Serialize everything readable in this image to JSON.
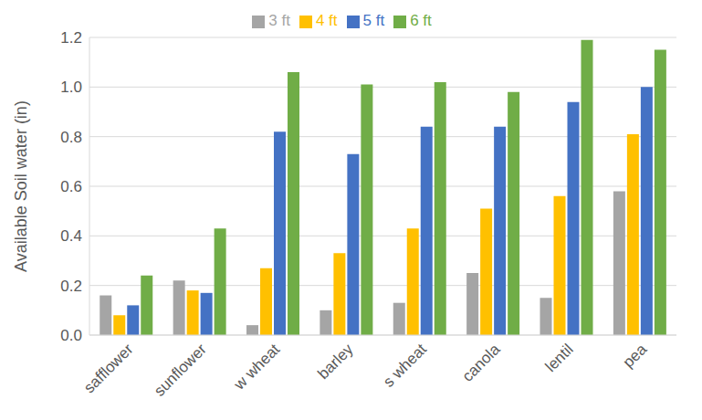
{
  "chart_data": {
    "type": "bar",
    "y_label": "Available Soil water (in)",
    "categories": [
      "safflower",
      "sunflower",
      "w wheat",
      "barley",
      "s wheat",
      "canola",
      "lentil",
      "pea"
    ],
    "series": [
      {
        "name": "3 ft",
        "color": "#a5a5a5",
        "values": [
          0.16,
          0.22,
          0.04,
          0.1,
          0.13,
          0.25,
          0.15,
          0.58
        ]
      },
      {
        "name": "4 ft",
        "color": "#ffc000",
        "values": [
          0.08,
          0.18,
          0.27,
          0.33,
          0.43,
          0.51,
          0.56,
          0.81
        ]
      },
      {
        "name": "5 ft",
        "color": "#4472c4",
        "values": [
          0.12,
          0.17,
          0.82,
          0.73,
          0.84,
          0.84,
          0.94,
          1.0
        ]
      },
      {
        "name": "6 ft",
        "color": "#70ad47",
        "values": [
          0.24,
          0.43,
          1.06,
          1.01,
          1.02,
          0.98,
          1.19,
          1.15
        ]
      }
    ],
    "ylim": [
      0,
      1.2
    ],
    "yticks": [
      {
        "value": 0,
        "label": "0.0"
      },
      0.2,
      0.4,
      0.6,
      0.8,
      {
        "value": 1,
        "label": "1.0"
      },
      1.2
    ],
    "grid": true,
    "legend": "top"
  }
}
